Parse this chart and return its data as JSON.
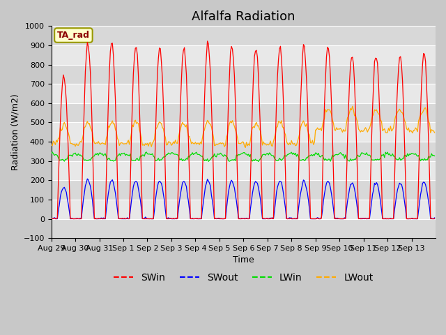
{
  "title": "Alfalfa Radiation",
  "xlabel": "Time",
  "ylabel": "Radiation (W/m2)",
  "ylim": [
    -100,
    1000
  ],
  "colors": {
    "SWin": "#ff0000",
    "SWout": "#0000ff",
    "LWin": "#00dd00",
    "LWout": "#ffaa00"
  },
  "legend_label": "TA_rad",
  "xtick_labels": [
    "Aug 29",
    "Aug 30",
    "Aug 31",
    "Sep 1",
    "Sep 2",
    "Sep 3",
    "Sep 4",
    "Sep 5",
    "Sep 6",
    "Sep 7",
    "Sep 8",
    "Sep 9",
    "Sep 10",
    "Sep 11",
    "Sep 12",
    "Sep 13"
  ],
  "bg_color": "#e8e8e8",
  "title_fontsize": 13,
  "axis_fontsize": 9,
  "legend_fontsize": 10
}
